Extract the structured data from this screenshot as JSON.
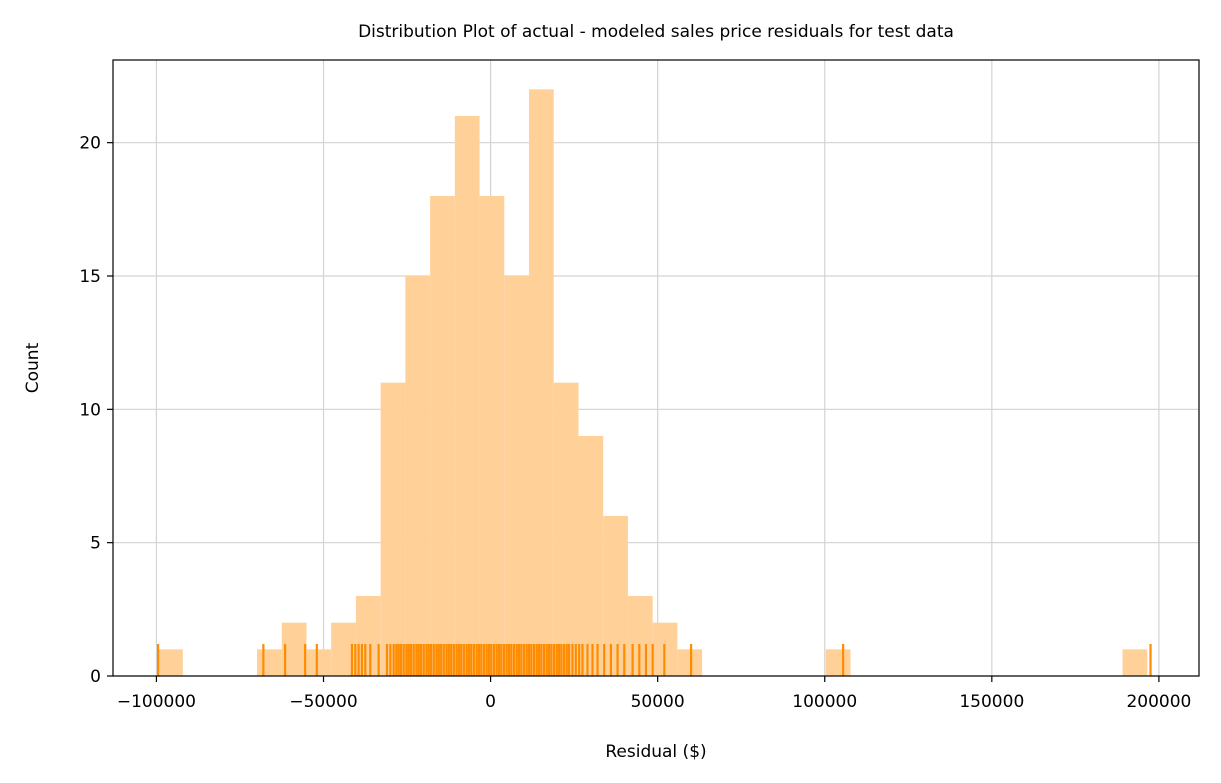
{
  "chart_data": {
    "type": "bar",
    "title": "Distribution Plot of actual - modeled sales price residuals for test data",
    "xlabel": "Residual ($)",
    "ylabel": "Count",
    "xlim": [
      -113000,
      212000
    ],
    "ylim": [
      0,
      23.1
    ],
    "xticks": [
      -100000,
      -50000,
      0,
      50000,
      100000,
      150000,
      200000
    ],
    "xtick_labels": [
      "−100000",
      "−50000",
      "0",
      "50000",
      "100000",
      "150000",
      "200000"
    ],
    "yticks": [
      0,
      5,
      10,
      15,
      20
    ],
    "ytick_labels": [
      "0",
      "5",
      "10",
      "15",
      "20"
    ],
    "grid": true,
    "colors": {
      "bar": "#ffd199",
      "rug": "#ff8c00",
      "grid": "#d3d3d3"
    },
    "bin_width": 7400,
    "bins": [
      {
        "x0": -99500,
        "x1": -92100,
        "count": 1
      },
      {
        "x0": -69900,
        "x1": -62500,
        "count": 1
      },
      {
        "x0": -62500,
        "x1": -55100,
        "count": 2
      },
      {
        "x0": -55100,
        "x1": -47700,
        "count": 1
      },
      {
        "x0": -47700,
        "x1": -40300,
        "count": 2
      },
      {
        "x0": -40300,
        "x1": -32900,
        "count": 3
      },
      {
        "x0": -32900,
        "x1": -25500,
        "count": 11
      },
      {
        "x0": -25500,
        "x1": -18100,
        "count": 15
      },
      {
        "x0": -18100,
        "x1": -10700,
        "count": 18
      },
      {
        "x0": -10700,
        "x1": -3300,
        "count": 21
      },
      {
        "x0": -3300,
        "x1": 4100,
        "count": 18
      },
      {
        "x0": 4100,
        "x1": 11500,
        "count": 15
      },
      {
        "x0": 11500,
        "x1": 18900,
        "count": 22
      },
      {
        "x0": 18900,
        "x1": 26300,
        "count": 11
      },
      {
        "x0": 26300,
        "x1": 33700,
        "count": 9
      },
      {
        "x0": 33700,
        "x1": 41100,
        "count": 6
      },
      {
        "x0": 41100,
        "x1": 48500,
        "count": 3
      },
      {
        "x0": 48500,
        "x1": 55900,
        "count": 2
      },
      {
        "x0": 55900,
        "x1": 63300,
        "count": 1
      },
      {
        "x0": 100300,
        "x1": 107700,
        "count": 1
      },
      {
        "x0": 189100,
        "x1": 196500,
        "count": 1
      }
    ],
    "rug": [
      -99500,
      -68000,
      -61500,
      -55500,
      -52000,
      -41500,
      -40500,
      -39500,
      -38500,
      -37500,
      -36000,
      -33500,
      -31000,
      -30000,
      -29000,
      -28200,
      -27500,
      -26800,
      -26000,
      -25200,
      -24500,
      -23800,
      -23000,
      -22200,
      -21500,
      -20800,
      -20000,
      -19200,
      -18500,
      -17800,
      -17000,
      -16200,
      -15500,
      -14800,
      -14000,
      -13200,
      -12500,
      -11800,
      -11000,
      -10200,
      -9500,
      -8800,
      -8000,
      -7200,
      -6500,
      -5800,
      -5000,
      -4200,
      -3500,
      -2800,
      -2000,
      -1200,
      -500,
      200,
      1000,
      1800,
      2500,
      3200,
      4000,
      4800,
      5500,
      6200,
      7000,
      7800,
      8500,
      9200,
      10000,
      10800,
      11500,
      12200,
      13000,
      13800,
      14500,
      15200,
      16000,
      16800,
      17500,
      18200,
      19000,
      19800,
      20500,
      21200,
      22000,
      22800,
      23500,
      24500,
      25500,
      26500,
      27500,
      29000,
      30500,
      32000,
      34000,
      36000,
      38000,
      40000,
      42500,
      44500,
      46500,
      48500,
      52000,
      60000,
      105500,
      197500
    ]
  }
}
